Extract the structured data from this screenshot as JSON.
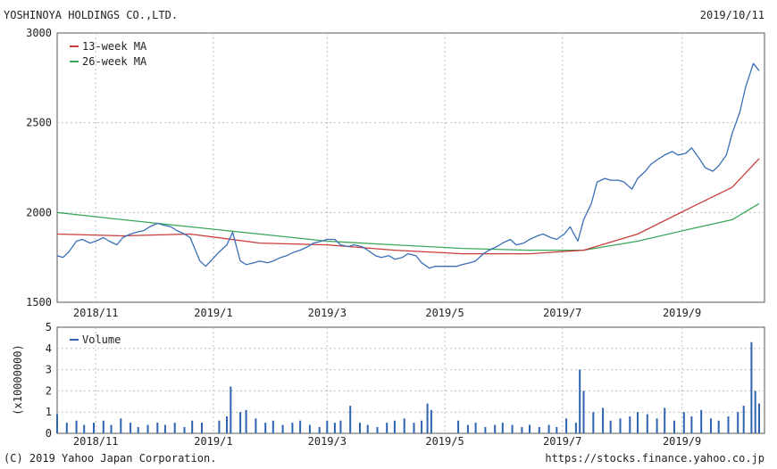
{
  "header": {
    "company": "YOSHINOYA HOLDINGS CO.,LTD.",
    "date": "2019/10/11"
  },
  "footer": {
    "copyright": "(C) 2019 Yahoo Japan Corporation.",
    "url": "https://stocks.finance.yahoo.co.jp"
  },
  "colors": {
    "price": "#3a6fb5",
    "ma13": "#c83c3c",
    "ma26": "#3aa85a",
    "volume": "#2e64b0"
  },
  "chart_data": [
    {
      "type": "line",
      "grid": true,
      "legend_position": "top-left",
      "ylim": [
        1500,
        3000
      ],
      "yticks": [
        "3000",
        "2500",
        "2000",
        "1500"
      ],
      "xlim": [
        "2018-10-12",
        "2019-10-11"
      ],
      "xticks": [
        {
          "date": "2018-11-01",
          "label": "2018/11"
        },
        {
          "date": "2019-01-01",
          "label": "2019/1"
        },
        {
          "date": "2019-03-01",
          "label": "2019/3"
        },
        {
          "date": "2019-05-01",
          "label": "2019/5"
        },
        {
          "date": "2019-07-01",
          "label": "2019/7"
        },
        {
          "date": "2019-09-01",
          "label": "2019/9"
        }
      ],
      "series": [
        {
          "key": "price",
          "points": [
            [
              "2018-10-12",
              1760
            ],
            [
              "2018-10-15",
              1750
            ],
            [
              "2018-10-18",
              1780
            ],
            [
              "2018-10-22",
              1840
            ],
            [
              "2018-10-25",
              1850
            ],
            [
              "2018-10-29",
              1830
            ],
            [
              "2018-11-01",
              1840
            ],
            [
              "2018-11-05",
              1860
            ],
            [
              "2018-11-08",
              1840
            ],
            [
              "2018-11-12",
              1820
            ],
            [
              "2018-11-15",
              1860
            ],
            [
              "2018-11-19",
              1880
            ],
            [
              "2018-11-22",
              1890
            ],
            [
              "2018-11-26",
              1900
            ],
            [
              "2018-11-29",
              1920
            ],
            [
              "2018-12-03",
              1940
            ],
            [
              "2018-12-06",
              1930
            ],
            [
              "2018-12-10",
              1920
            ],
            [
              "2018-12-13",
              1900
            ],
            [
              "2018-12-17",
              1880
            ],
            [
              "2018-12-20",
              1860
            ],
            [
              "2018-12-25",
              1730
            ],
            [
              "2018-12-28",
              1700
            ],
            [
              "2019-01-04",
              1780
            ],
            [
              "2019-01-08",
              1820
            ],
            [
              "2019-01-11",
              1890
            ],
            [
              "2019-01-15",
              1730
            ],
            [
              "2019-01-18",
              1710
            ],
            [
              "2019-01-22",
              1720
            ],
            [
              "2019-01-25",
              1730
            ],
            [
              "2019-01-29",
              1720
            ],
            [
              "2019-02-01",
              1730
            ],
            [
              "2019-02-05",
              1750
            ],
            [
              "2019-02-08",
              1760
            ],
            [
              "2019-02-12",
              1780
            ],
            [
              "2019-02-15",
              1790
            ],
            [
              "2019-02-19",
              1810
            ],
            [
              "2019-02-22",
              1830
            ],
            [
              "2019-02-26",
              1840
            ],
            [
              "2019-03-01",
              1850
            ],
            [
              "2019-03-05",
              1850
            ],
            [
              "2019-03-08",
              1820
            ],
            [
              "2019-03-12",
              1810
            ],
            [
              "2019-03-15",
              1820
            ],
            [
              "2019-03-19",
              1810
            ],
            [
              "2019-03-22",
              1790
            ],
            [
              "2019-03-26",
              1760
            ],
            [
              "2019-03-29",
              1750
            ],
            [
              "2019-04-02",
              1760
            ],
            [
              "2019-04-05",
              1740
            ],
            [
              "2019-04-09",
              1750
            ],
            [
              "2019-04-12",
              1770
            ],
            [
              "2019-04-16",
              1760
            ],
            [
              "2019-04-19",
              1720
            ],
            [
              "2019-04-23",
              1690
            ],
            [
              "2019-04-26",
              1700
            ],
            [
              "2019-05-07",
              1700
            ],
            [
              "2019-05-10",
              1710
            ],
            [
              "2019-05-14",
              1720
            ],
            [
              "2019-05-17",
              1730
            ],
            [
              "2019-05-21",
              1770
            ],
            [
              "2019-05-24",
              1790
            ],
            [
              "2019-05-28",
              1810
            ],
            [
              "2019-05-31",
              1830
            ],
            [
              "2019-06-04",
              1850
            ],
            [
              "2019-06-07",
              1820
            ],
            [
              "2019-06-11",
              1830
            ],
            [
              "2019-06-14",
              1850
            ],
            [
              "2019-06-18",
              1870
            ],
            [
              "2019-06-21",
              1880
            ],
            [
              "2019-06-25",
              1860
            ],
            [
              "2019-06-28",
              1850
            ],
            [
              "2019-07-02",
              1880
            ],
            [
              "2019-07-05",
              1920
            ],
            [
              "2019-07-09",
              1840
            ],
            [
              "2019-07-12",
              1960
            ],
            [
              "2019-07-16",
              2050
            ],
            [
              "2019-07-19",
              2170
            ],
            [
              "2019-07-23",
              2190
            ],
            [
              "2019-07-26",
              2180
            ],
            [
              "2019-07-30",
              2180
            ],
            [
              "2019-08-02",
              2170
            ],
            [
              "2019-08-06",
              2130
            ],
            [
              "2019-08-09",
              2190
            ],
            [
              "2019-08-13",
              2230
            ],
            [
              "2019-08-16",
              2270
            ],
            [
              "2019-08-20",
              2300
            ],
            [
              "2019-08-23",
              2320
            ],
            [
              "2019-08-27",
              2340
            ],
            [
              "2019-08-30",
              2320
            ],
            [
              "2019-09-03",
              2330
            ],
            [
              "2019-09-06",
              2360
            ],
            [
              "2019-09-10",
              2300
            ],
            [
              "2019-09-13",
              2250
            ],
            [
              "2019-09-17",
              2230
            ],
            [
              "2019-09-20",
              2260
            ],
            [
              "2019-09-24",
              2320
            ],
            [
              "2019-09-27",
              2440
            ],
            [
              "2019-10-01",
              2560
            ],
            [
              "2019-10-04",
              2700
            ],
            [
              "2019-10-08",
              2830
            ],
            [
              "2019-10-11",
              2790
            ]
          ]
        },
        {
          "key": "ma13",
          "name": "13-week MA",
          "points": [
            [
              "2018-10-12",
              1880
            ],
            [
              "2018-11-15",
              1870
            ],
            [
              "2018-12-20",
              1880
            ],
            [
              "2019-01-25",
              1830
            ],
            [
              "2019-03-01",
              1820
            ],
            [
              "2019-04-05",
              1790
            ],
            [
              "2019-05-10",
              1770
            ],
            [
              "2019-06-14",
              1770
            ],
            [
              "2019-07-12",
              1790
            ],
            [
              "2019-08-09",
              1880
            ],
            [
              "2019-09-06",
              2030
            ],
            [
              "2019-09-27",
              2140
            ],
            [
              "2019-10-11",
              2300
            ]
          ]
        },
        {
          "key": "ma26",
          "name": "26-week MA",
          "points": [
            [
              "2018-10-12",
              2000
            ],
            [
              "2018-11-15",
              1960
            ],
            [
              "2018-12-20",
              1920
            ],
            [
              "2019-01-25",
              1880
            ],
            [
              "2019-03-01",
              1840
            ],
            [
              "2019-04-05",
              1820
            ],
            [
              "2019-05-10",
              1800
            ],
            [
              "2019-06-14",
              1790
            ],
            [
              "2019-07-12",
              1790
            ],
            [
              "2019-08-09",
              1840
            ],
            [
              "2019-09-06",
              1910
            ],
            [
              "2019-09-27",
              1960
            ],
            [
              "2019-10-11",
              2050
            ]
          ]
        }
      ]
    },
    {
      "type": "bar",
      "grid": true,
      "legend_position": "top-left",
      "ylim": [
        0,
        5
      ],
      "yticks": [
        "5",
        "4",
        "3",
        "2",
        "1",
        "0"
      ],
      "ylabel": "(x10000000)",
      "series": [
        {
          "key": "volume",
          "name": "Volume",
          "points": [
            [
              "2018-10-12",
              0.9
            ],
            [
              "2018-10-17",
              0.5
            ],
            [
              "2018-10-22",
              0.6
            ],
            [
              "2018-10-26",
              0.4
            ],
            [
              "2018-10-31",
              0.5
            ],
            [
              "2018-11-05",
              0.6
            ],
            [
              "2018-11-09",
              0.4
            ],
            [
              "2018-11-14",
              0.7
            ],
            [
              "2018-11-19",
              0.5
            ],
            [
              "2018-11-23",
              0.3
            ],
            [
              "2018-11-28",
              0.4
            ],
            [
              "2018-12-03",
              0.5
            ],
            [
              "2018-12-07",
              0.4
            ],
            [
              "2018-12-12",
              0.5
            ],
            [
              "2018-12-17",
              0.3
            ],
            [
              "2018-12-21",
              0.6
            ],
            [
              "2018-12-26",
              0.5
            ],
            [
              "2019-01-04",
              0.6
            ],
            [
              "2019-01-08",
              0.8
            ],
            [
              "2019-01-10",
              2.2
            ],
            [
              "2019-01-15",
              1.0
            ],
            [
              "2019-01-18",
              1.1
            ],
            [
              "2019-01-23",
              0.7
            ],
            [
              "2019-01-28",
              0.5
            ],
            [
              "2019-02-01",
              0.6
            ],
            [
              "2019-02-06",
              0.4
            ],
            [
              "2019-02-11",
              0.5
            ],
            [
              "2019-02-15",
              0.6
            ],
            [
              "2019-02-20",
              0.4
            ],
            [
              "2019-02-25",
              0.3
            ],
            [
              "2019-03-01",
              0.6
            ],
            [
              "2019-03-05",
              0.5
            ],
            [
              "2019-03-08",
              0.6
            ],
            [
              "2019-03-13",
              1.3
            ],
            [
              "2019-03-18",
              0.5
            ],
            [
              "2019-03-22",
              0.4
            ],
            [
              "2019-03-27",
              0.3
            ],
            [
              "2019-04-01",
              0.5
            ],
            [
              "2019-04-05",
              0.6
            ],
            [
              "2019-04-10",
              0.7
            ],
            [
              "2019-04-15",
              0.5
            ],
            [
              "2019-04-19",
              0.6
            ],
            [
              "2019-04-22",
              1.4
            ],
            [
              "2019-04-24",
              1.1
            ],
            [
              "2019-05-08",
              0.6
            ],
            [
              "2019-05-13",
              0.4
            ],
            [
              "2019-05-17",
              0.5
            ],
            [
              "2019-05-22",
              0.3
            ],
            [
              "2019-05-27",
              0.4
            ],
            [
              "2019-05-31",
              0.5
            ],
            [
              "2019-06-05",
              0.4
            ],
            [
              "2019-06-10",
              0.3
            ],
            [
              "2019-06-14",
              0.4
            ],
            [
              "2019-06-19",
              0.3
            ],
            [
              "2019-06-24",
              0.4
            ],
            [
              "2019-06-28",
              0.3
            ],
            [
              "2019-07-03",
              0.7
            ],
            [
              "2019-07-08",
              0.5
            ],
            [
              "2019-07-10",
              3.0
            ],
            [
              "2019-07-12",
              2.0
            ],
            [
              "2019-07-17",
              1.0
            ],
            [
              "2019-07-22",
              1.2
            ],
            [
              "2019-07-26",
              0.6
            ],
            [
              "2019-07-31",
              0.7
            ],
            [
              "2019-08-05",
              0.8
            ],
            [
              "2019-08-09",
              1.0
            ],
            [
              "2019-08-14",
              0.9
            ],
            [
              "2019-08-19",
              0.7
            ],
            [
              "2019-08-23",
              1.2
            ],
            [
              "2019-08-28",
              0.6
            ],
            [
              "2019-09-02",
              1.0
            ],
            [
              "2019-09-06",
              0.8
            ],
            [
              "2019-09-11",
              1.1
            ],
            [
              "2019-09-16",
              0.7
            ],
            [
              "2019-09-20",
              0.6
            ],
            [
              "2019-09-25",
              0.8
            ],
            [
              "2019-09-30",
              1.0
            ],
            [
              "2019-10-03",
              1.3
            ],
            [
              "2019-10-07",
              4.3
            ],
            [
              "2019-10-09",
              2.0
            ],
            [
              "2019-10-11",
              1.4
            ]
          ]
        }
      ]
    }
  ]
}
